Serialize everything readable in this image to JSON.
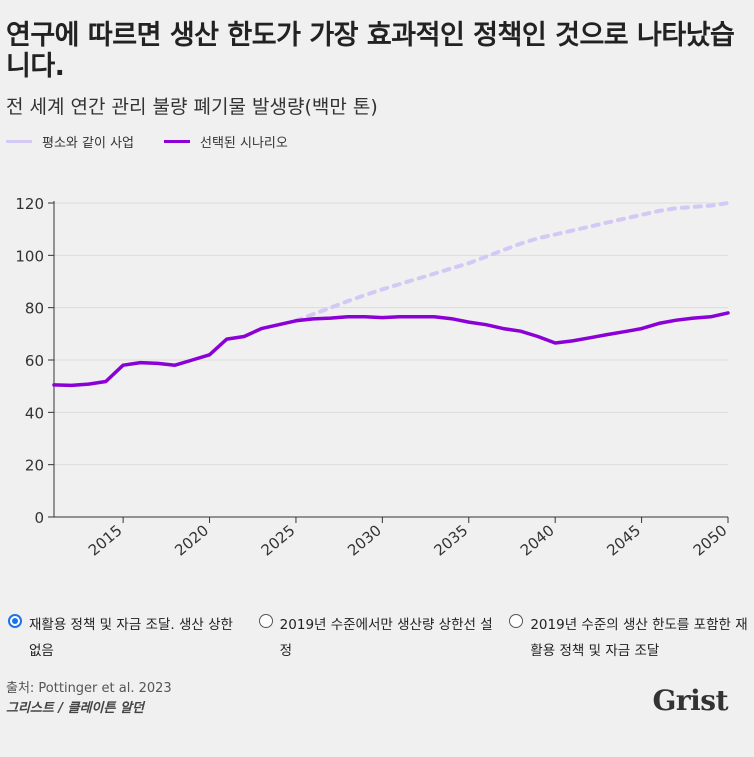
{
  "title": "연구에 따르면 생산 한도가 가장 효과적인 정책인 것으로 나타났습니다.",
  "subtitle": "전 세계 연간 관리 불량 폐기물 발생량(백만 톤)",
  "legend": [
    {
      "label": "평소와 같이 사업",
      "color": "#d4c8f5"
    },
    {
      "label": "선택된 시나리오",
      "color": "#8b00d6"
    }
  ],
  "options": [
    {
      "label": "재활용 정책 및 자금 조달. 생산 상한 없음",
      "selected": true
    },
    {
      "label": "2019년 수준에서만 생산량 상한선 설정",
      "selected": false
    },
    {
      "label": "2019년 수준의 생산 한도를 포함한 재활용 정책 및 자금 조달",
      "selected": false
    }
  ],
  "source": "출처: Pottinger et al. 2023",
  "credit": "그리스트 / 클레이튼 알던",
  "logo": "Grist",
  "chart_data": {
    "type": "line",
    "x_ticks": [
      2015,
      2020,
      2025,
      2030,
      2035,
      2040,
      2045,
      2050
    ],
    "y_ticks": [
      0,
      20,
      40,
      60,
      80,
      100,
      120
    ],
    "xlim": [
      2011,
      2050
    ],
    "ylim": [
      0,
      120
    ],
    "grid": true,
    "series": [
      {
        "name": "평소와 같이 사업",
        "color": "#d4c8f5",
        "style": "dotted",
        "x": [
          2025,
          2026,
          2027,
          2028,
          2029,
          2030,
          2031,
          2032,
          2033,
          2034,
          2035,
          2036,
          2037,
          2038,
          2039,
          2040,
          2041,
          2042,
          2043,
          2044,
          2045,
          2046,
          2047,
          2048,
          2049,
          2050
        ],
        "values": [
          75,
          77.5,
          80,
          82.5,
          84.8,
          87,
          89,
          91,
          93,
          95,
          97,
          99.5,
          102,
          104.5,
          106.5,
          108,
          109.5,
          111,
          112.5,
          114,
          115.5,
          117,
          118,
          118.5,
          119,
          120
        ]
      },
      {
        "name": "선택된 시나리오",
        "color": "#8b00d6",
        "style": "solid",
        "x": [
          2011,
          2012,
          2013,
          2014,
          2015,
          2016,
          2017,
          2018,
          2019,
          2020,
          2021,
          2022,
          2023,
          2024,
          2025,
          2026,
          2027,
          2028,
          2029,
          2030,
          2031,
          2032,
          2033,
          2034,
          2035,
          2036,
          2037,
          2038,
          2039,
          2040,
          2041,
          2042,
          2043,
          2044,
          2045,
          2046,
          2047,
          2048,
          2049,
          2050
        ],
        "values": [
          50.5,
          50.3,
          50.8,
          51.8,
          58,
          59,
          58.7,
          58,
          60,
          62,
          68,
          69,
          72,
          73.5,
          75,
          75.7,
          76,
          76.5,
          76.5,
          76.2,
          76.5,
          76.5,
          76.5,
          75.8,
          74.5,
          73.5,
          72,
          71,
          69,
          66.5,
          67.3,
          68.5,
          69.7,
          70.8,
          72,
          74,
          75.2,
          76,
          76.5,
          78
        ]
      }
    ]
  }
}
